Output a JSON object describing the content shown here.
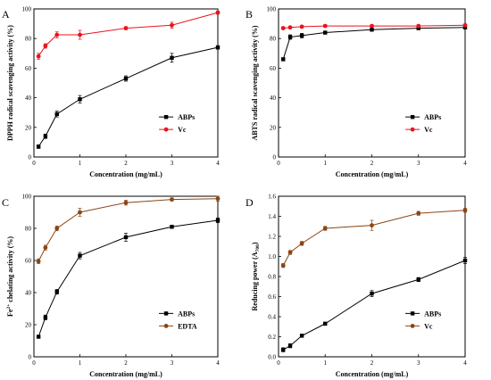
{
  "chart_data": [
    {
      "panel": "A",
      "type": "line",
      "xlabel": "Concentration (mg/mL)",
      "ylabel": "DPPH radical scavenging activity (%)",
      "xlim": [
        0,
        4
      ],
      "ylim": [
        0,
        100
      ],
      "xticks": [
        0,
        1,
        2,
        3,
        4
      ],
      "yticks": [
        0,
        20,
        40,
        60,
        80,
        100
      ],
      "grid": false,
      "legend_position": "center-right",
      "series": [
        {
          "name": "ABPs",
          "color": "#000000",
          "marker": "square",
          "x": [
            0.1,
            0.25,
            0.5,
            1,
            2,
            3,
            4
          ],
          "y": [
            7,
            14,
            29,
            39,
            53,
            67,
            74
          ],
          "err": [
            1.2,
            1.5,
            2,
            2.5,
            1.8,
            3,
            1.2
          ]
        },
        {
          "name": "Vc",
          "color": "#e8141c",
          "marker": "circle",
          "x": [
            0.1,
            0.25,
            0.5,
            1,
            2,
            3,
            4
          ],
          "y": [
            68,
            75,
            82.5,
            82.5,
            87,
            89,
            97.5
          ],
          "err": [
            2,
            1.5,
            2,
            3,
            1,
            2,
            1
          ]
        }
      ]
    },
    {
      "panel": "B",
      "type": "line",
      "xlabel": "Concentration (mg/mL)",
      "ylabel": "ABTS radical scavenging activity (%)",
      "xlim": [
        0,
        4
      ],
      "ylim": [
        0,
        100
      ],
      "xticks": [
        0,
        1,
        2,
        3,
        4
      ],
      "yticks": [
        0,
        20,
        40,
        60,
        80,
        100
      ],
      "grid": false,
      "legend_position": "center-right",
      "series": [
        {
          "name": "ABPs",
          "color": "#000000",
          "marker": "square",
          "x": [
            0.1,
            0.25,
            0.5,
            1,
            2,
            3,
            4
          ],
          "y": [
            66,
            81,
            82,
            84,
            86,
            87,
            87.5
          ],
          "err": [
            1,
            1.5,
            1.5,
            1,
            1,
            1,
            1
          ]
        },
        {
          "name": "Vc",
          "color": "#e8141c",
          "marker": "circle",
          "x": [
            0.1,
            0.25,
            0.5,
            1,
            2,
            3,
            4
          ],
          "y": [
            87,
            87.5,
            88,
            88.5,
            88.5,
            88.5,
            89
          ],
          "err": [
            0.8,
            0.8,
            0.8,
            0.8,
            0.8,
            0.8,
            0.8
          ]
        }
      ]
    },
    {
      "panel": "C",
      "type": "line",
      "xlabel": "Concentration (mg/mL)",
      "ylabel_main": "Fe",
      "ylabel_sup": "2+",
      "ylabel_rest": " chelating  activity (%)",
      "xlim": [
        0,
        4
      ],
      "ylim": [
        0,
        100
      ],
      "xticks": [
        0,
        1,
        2,
        3,
        4
      ],
      "yticks": [
        0,
        20,
        40,
        60,
        80,
        100
      ],
      "grid": false,
      "legend_position": "center-right",
      "series": [
        {
          "name": "ABPs",
          "color": "#000000",
          "marker": "square",
          "x": [
            0.1,
            0.25,
            0.5,
            1,
            2,
            3,
            4
          ],
          "y": [
            12.5,
            24.5,
            40.5,
            63,
            74.5,
            81,
            85
          ],
          "err": [
            0.8,
            1.5,
            1.5,
            2,
            2.5,
            1,
            1.5
          ]
        },
        {
          "name": "EDTA",
          "color": "#8b4513",
          "marker": "circle",
          "x": [
            0.1,
            0.25,
            0.5,
            1,
            2,
            3,
            4
          ],
          "y": [
            59.5,
            68,
            80,
            90,
            96,
            98,
            98.5
          ],
          "err": [
            1.5,
            1.5,
            1.5,
            2.5,
            1.5,
            1,
            1.5
          ]
        }
      ]
    },
    {
      "panel": "D",
      "type": "line",
      "xlabel": "Concentration (mg/mL)",
      "ylabel_main": "Reducing power (A",
      "ylabel_sub": "700",
      "ylabel_rest": ")",
      "xlim": [
        0,
        4
      ],
      "ylim": [
        0,
        1.6
      ],
      "xticks": [
        0,
        1,
        2,
        3,
        4
      ],
      "yticks": [
        0.0,
        0.2,
        0.4,
        0.6,
        0.8,
        1.0,
        1.2,
        1.4,
        1.6
      ],
      "grid": false,
      "legend_position": "center-right",
      "series": [
        {
          "name": "ABPs",
          "color": "#000000",
          "marker": "square",
          "x": [
            0.1,
            0.25,
            0.5,
            1,
            2,
            3,
            4
          ],
          "y": [
            0.07,
            0.11,
            0.21,
            0.33,
            0.63,
            0.77,
            0.96
          ],
          "err": [
            0.02,
            0.02,
            0.015,
            0.015,
            0.03,
            0.02,
            0.03
          ]
        },
        {
          "name": "Vc",
          "color": "#8b4513",
          "marker": "circle",
          "x": [
            0.1,
            0.25,
            0.5,
            1,
            2,
            3,
            4
          ],
          "y": [
            0.91,
            1.04,
            1.13,
            1.28,
            1.31,
            1.43,
            1.46
          ],
          "err": [
            0.02,
            0.02,
            0.02,
            0.02,
            0.05,
            0.02,
            0.02
          ]
        }
      ]
    }
  ]
}
